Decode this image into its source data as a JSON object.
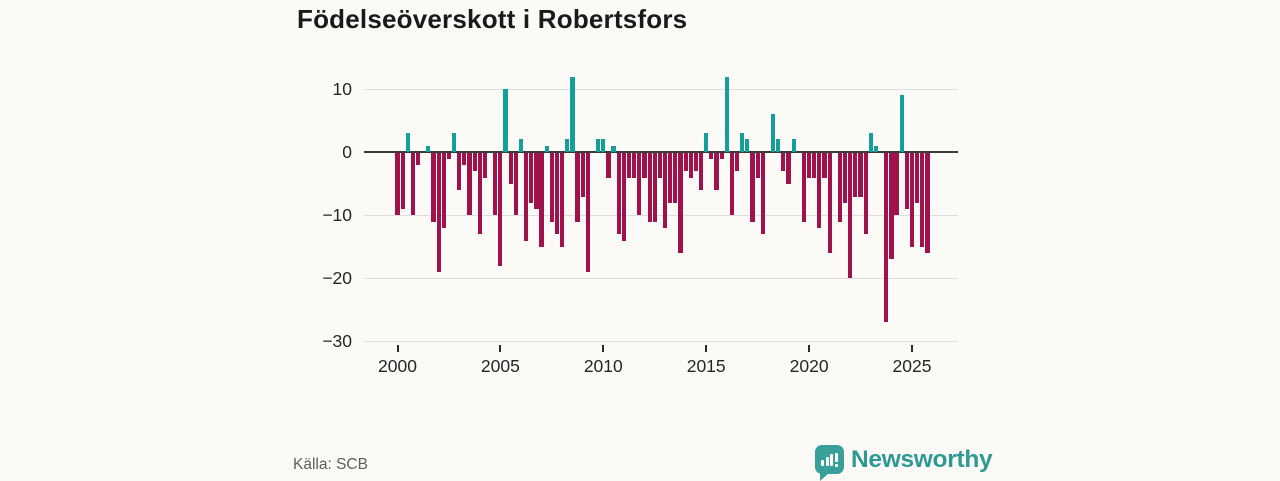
{
  "title": "Födelseöverskott i Robertsfors",
  "footer": {
    "source": "Källa: SCB",
    "brand": "Newsworthy"
  },
  "colors": {
    "positive": "#14A099",
    "negative": "#A1114B",
    "grid": "#DEDEDE",
    "zero_line": "#3B3B3B",
    "background": "#FBFAF7",
    "text": "#262626",
    "muted": "#5E5E5E",
    "brand": "#2E9A92"
  },
  "chart_data": {
    "type": "bar",
    "title": "Födelseöverskott i Robertsfors",
    "frequency": "quarterly",
    "start_year": 2000,
    "end_year": 2025,
    "values": [
      -10,
      -9,
      3,
      -10,
      -2,
      0,
      1,
      -11,
      -19,
      -12,
      -1,
      3,
      -6,
      -2,
      -10,
      -3,
      -13,
      -4,
      0,
      -10,
      -18,
      10,
      -5,
      -10,
      2,
      -14,
      -8,
      -9,
      -15,
      1,
      -11,
      -13,
      -15,
      2,
      12,
      -11,
      -7,
      -19,
      0,
      2,
      2,
      -4,
      1,
      -13,
      -14,
      -4,
      -4,
      -10,
      -4,
      -11,
      -11,
      -4,
      -12,
      -8,
      -8,
      -16,
      -3,
      -4,
      -3,
      -6,
      3,
      -1,
      -6,
      -1,
      12,
      -10,
      -3,
      3,
      2,
      -11,
      -4,
      -13,
      0,
      6,
      2,
      -3,
      -5,
      2,
      0,
      -11,
      -4,
      -4,
      -12,
      -4,
      -16,
      0,
      -11,
      -8,
      -20,
      -7,
      -7,
      -13,
      3,
      1,
      0,
      -27,
      -17,
      -10,
      9,
      -9,
      -15,
      -8,
      -15,
      -16
    ],
    "x_tick_labels": [
      "2000",
      "2005",
      "2010",
      "2015",
      "2020",
      "2025"
    ],
    "x_tick_indices": [
      0,
      20,
      40,
      60,
      80,
      100
    ],
    "y_ticks": [
      10,
      0,
      -10,
      -20,
      -30
    ],
    "y_tick_labels": [
      "10",
      "0",
      "−10",
      "−20",
      "−30"
    ],
    "ylim": [
      -30,
      13
    ],
    "grid": true,
    "zero_line": true,
    "legend": false
  }
}
